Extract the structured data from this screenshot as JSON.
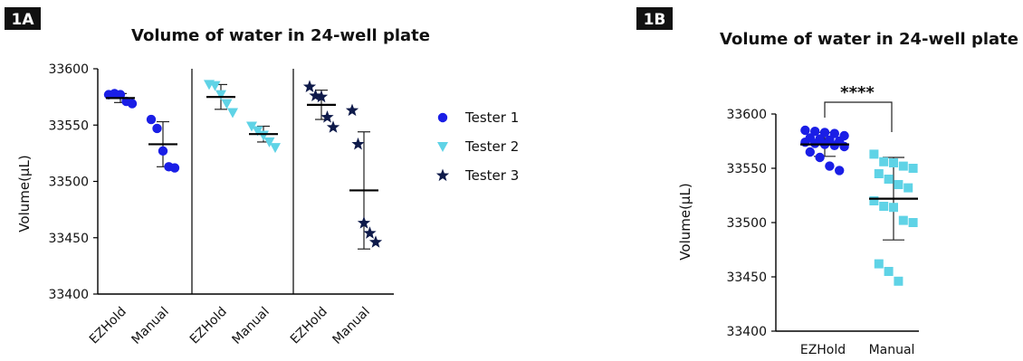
{
  "colors": {
    "tester1": "#1a1ee6",
    "tester2": "#5fd3e6",
    "tester3": "#0e1a4a",
    "ezhold": "#1a1ee6",
    "manual": "#5fd3e6",
    "axis": "#000000"
  },
  "chart_data": [
    {
      "panel_label": "1A",
      "type": "scatter",
      "title": "Volume of water in 24-well plate",
      "ylabel": "Volume(µL)",
      "ylim": [
        33400,
        33600
      ],
      "yticks": [
        "33600",
        "33550",
        "33500",
        "33450",
        "33400"
      ],
      "groups": [
        {
          "label": "EZHold",
          "tester": "Tester 1",
          "points": [
            33577,
            33578,
            33577,
            33571,
            33569
          ],
          "mean": 33574,
          "sd": 4
        },
        {
          "label": "Manual",
          "tester": "Tester 1",
          "points": [
            33555,
            33547,
            33527,
            33513,
            33512
          ],
          "mean": 33533,
          "sd": 20
        },
        {
          "label": "EZHold",
          "tester": "Tester 2",
          "points": [
            33586,
            33585,
            33577,
            33569,
            33561
          ],
          "mean": 33575,
          "sd": 11
        },
        {
          "label": "Manual",
          "tester": "Tester 2",
          "points": [
            33549,
            33545,
            33541,
            33535,
            33530
          ],
          "mean": 33542,
          "sd": 7
        },
        {
          "label": "EZHold",
          "tester": "Tester 3",
          "points": [
            33584,
            33576,
            33575,
            33557,
            33548
          ],
          "mean": 33568,
          "sd": 13
        },
        {
          "label": "Manual",
          "tester": "Tester 3",
          "points": [
            33563,
            33533,
            33463,
            33454,
            33446
          ],
          "mean": 33492,
          "sd": 52
        }
      ],
      "legend": [
        {
          "name": "Tester 1",
          "marker": "circle"
        },
        {
          "name": "Tester 2",
          "marker": "triangle-down"
        },
        {
          "name": "Tester 3",
          "marker": "star"
        }
      ],
      "legend_position": "right"
    },
    {
      "panel_label": "1B",
      "type": "scatter",
      "title": "Volume of water in 24-well plate",
      "ylabel": "Volume(µL)",
      "ylim": [
        33400,
        33600
      ],
      "yticks": [
        "33600",
        "33550",
        "33500",
        "33450",
        "33400"
      ],
      "categories": [
        "EZHold",
        "Manual"
      ],
      "groups": [
        {
          "label": "EZHold",
          "marker": "circle",
          "points": [
            33585,
            33584,
            33583,
            33582,
            33580,
            33578,
            33577,
            33576,
            33575,
            33574,
            33573,
            33572,
            33571,
            33570,
            33565,
            33560,
            33552,
            33548
          ],
          "mean": 33572,
          "sd": 11
        },
        {
          "label": "Manual",
          "marker": "square",
          "points": [
            33563,
            33556,
            33555,
            33552,
            33550,
            33545,
            33540,
            33535,
            33532,
            33520,
            33515,
            33514,
            33502,
            33500,
            33462,
            33455,
            33446
          ],
          "mean": 33522,
          "sd": 38
        }
      ],
      "significance": "****"
    }
  ]
}
